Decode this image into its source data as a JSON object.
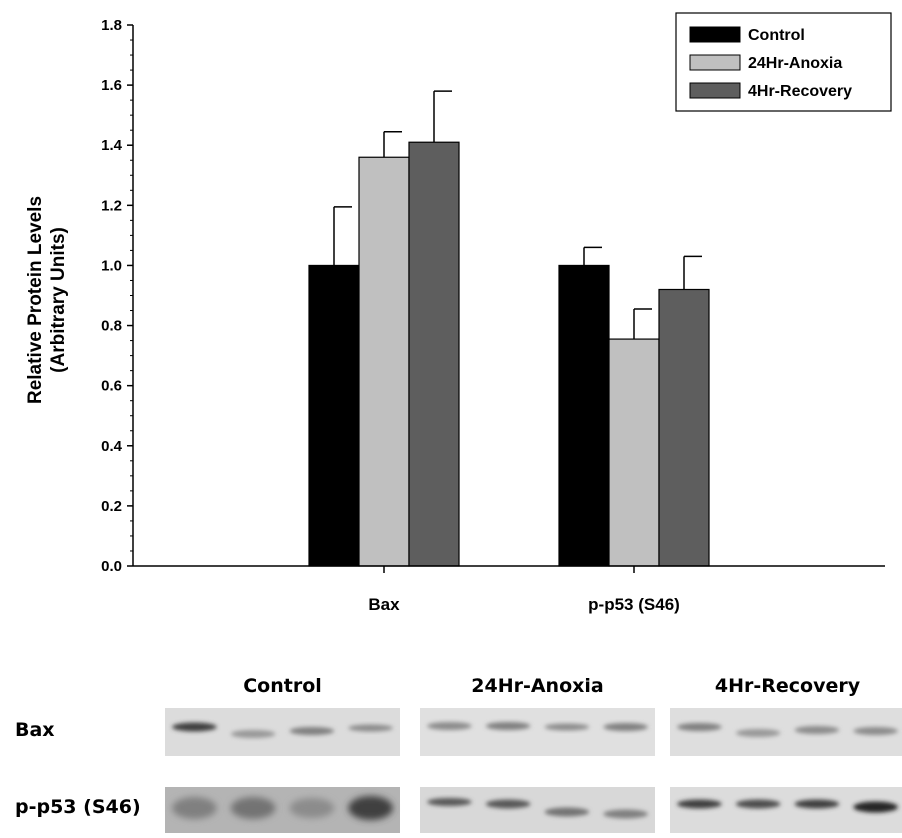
{
  "chart_data": {
    "type": "bar",
    "categories": [
      "Bax",
      "p-p53 (S46)"
    ],
    "series": [
      {
        "name": "Control",
        "values": [
          1.0,
          1.0
        ],
        "errors": [
          0.195,
          0.06
        ],
        "color": "#000000"
      },
      {
        "name": "24Hr-Anoxia",
        "values": [
          1.36,
          0.755
        ],
        "errors": [
          0.085,
          0.1
        ],
        "color": "#c0c0c0"
      },
      {
        "name": "4Hr-Recovery",
        "values": [
          1.41,
          0.92
        ],
        "errors": [
          0.17,
          0.11
        ],
        "color": "#5e5e5e"
      }
    ],
    "ylabel_line1": "Relative Protein Levels",
    "ylabel_line2": "(Arbitrary Units)",
    "ylim": [
      0,
      1.8
    ],
    "ytick_labels": [
      "0.0",
      "0.2",
      "0.4",
      "0.6",
      "0.8",
      "1.0",
      "1.2",
      "1.4",
      "1.6",
      "1.8"
    ],
    "grid": false,
    "legend_placement": "top-right"
  },
  "blots": {
    "groups": [
      "Control",
      "24Hr-Anoxia",
      "4Hr-Recovery"
    ],
    "rows": [
      "Bax",
      "p-p53 (S46)"
    ]
  }
}
